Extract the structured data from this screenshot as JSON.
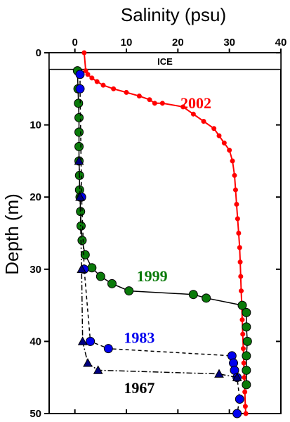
{
  "chart_data": {
    "type": "line",
    "xlabel": "Salinity (psu)",
    "ylabel": "Depth (m)",
    "xlim": [
      -5,
      40
    ],
    "ylim": [
      0,
      50
    ],
    "y_inverted": true,
    "x_axis_position": "top",
    "x_ticks": [
      0,
      10,
      20,
      30,
      40
    ],
    "y_ticks": [
      0,
      10,
      20,
      30,
      40,
      50
    ],
    "grid": false,
    "ice_band": {
      "label": "ICE",
      "depth_top": 0,
      "depth_bottom": 2.3
    },
    "series": [
      {
        "name": "2002",
        "color": "#ff0000",
        "line": "solid",
        "marker": "circle",
        "label_at": {
          "x": 23.5,
          "y": 7
        },
        "points": [
          [
            1.8,
            0
          ],
          [
            2.1,
            2.5
          ],
          [
            2.5,
            3
          ],
          [
            3.3,
            3.5
          ],
          [
            4.3,
            4
          ],
          [
            5.5,
            4.5
          ],
          [
            7.5,
            5
          ],
          [
            10,
            5.5
          ],
          [
            12.5,
            6
          ],
          [
            14.5,
            6.5
          ],
          [
            15.5,
            7
          ],
          [
            17,
            7
          ],
          [
            21,
            7.5
          ],
          [
            23,
            8.5
          ],
          [
            25,
            9.5
          ],
          [
            27,
            10.5
          ],
          [
            28,
            11.5
          ],
          [
            29,
            12.5
          ],
          [
            30,
            13.5
          ],
          [
            30.6,
            15
          ],
          [
            31,
            17
          ],
          [
            31.2,
            19
          ],
          [
            31.4,
            21
          ],
          [
            31.6,
            23
          ],
          [
            31.8,
            25
          ],
          [
            32,
            27
          ],
          [
            32.1,
            29
          ],
          [
            32.2,
            31
          ],
          [
            32.3,
            33
          ],
          [
            32.4,
            35
          ],
          [
            32.5,
            37
          ],
          [
            32.6,
            39
          ],
          [
            32.7,
            41
          ],
          [
            32.8,
            43
          ],
          [
            32.9,
            45
          ],
          [
            33,
            47
          ],
          [
            33.1,
            49
          ],
          [
            33.2,
            50
          ]
        ]
      },
      {
        "name": "1999",
        "color": "#0a7a0a",
        "line": "solid",
        "marker": "circle",
        "label_at": {
          "x": 15,
          "y": 31
        },
        "points": [
          [
            0.5,
            2.5
          ],
          [
            0.6,
            5
          ],
          [
            0.7,
            7
          ],
          [
            0.8,
            9
          ],
          [
            0.8,
            11
          ],
          [
            0.8,
            13
          ],
          [
            0.8,
            15
          ],
          [
            0.9,
            17
          ],
          [
            0.9,
            19
          ],
          [
            1,
            20
          ],
          [
            1.1,
            22
          ],
          [
            1.2,
            24
          ],
          [
            1.4,
            26
          ],
          [
            2,
            28
          ],
          [
            3.3,
            29.8
          ],
          [
            5,
            31
          ],
          [
            7.2,
            32
          ],
          [
            10.5,
            33
          ],
          [
            23,
            33.5
          ],
          [
            25.5,
            34
          ],
          [
            32.5,
            35
          ],
          [
            33.3,
            36
          ],
          [
            33.3,
            38
          ],
          [
            33.5,
            40
          ],
          [
            33.3,
            42
          ],
          [
            33.3,
            44
          ],
          [
            33.3,
            46
          ]
        ]
      },
      {
        "name": "1983",
        "color": "#0000ee",
        "line": "dashed",
        "marker": "circle",
        "label_at": {
          "x": 12.5,
          "y": 39.5
        },
        "points": [
          [
            1,
            3
          ],
          [
            1,
            5
          ],
          [
            1.3,
            20
          ],
          [
            1.8,
            30
          ],
          [
            3,
            40
          ],
          [
            6.5,
            41
          ],
          [
            30.5,
            42
          ],
          [
            30.8,
            43
          ],
          [
            31,
            44
          ],
          [
            31.5,
            45
          ],
          [
            32,
            48
          ],
          [
            31.5,
            50
          ]
        ]
      },
      {
        "name": "1967",
        "color": "#000080",
        "line": "dashdot",
        "marker": "triangle",
        "label_at": {
          "x": 12.5,
          "y": 46.5
        },
        "points": [
          [
            0.8,
            15
          ],
          [
            1,
            20
          ],
          [
            1.3,
            30
          ],
          [
            1.5,
            40
          ],
          [
            2.5,
            43
          ],
          [
            4.5,
            44
          ],
          [
            28,
            44.5
          ],
          [
            31.5,
            45
          ]
        ]
      }
    ]
  }
}
